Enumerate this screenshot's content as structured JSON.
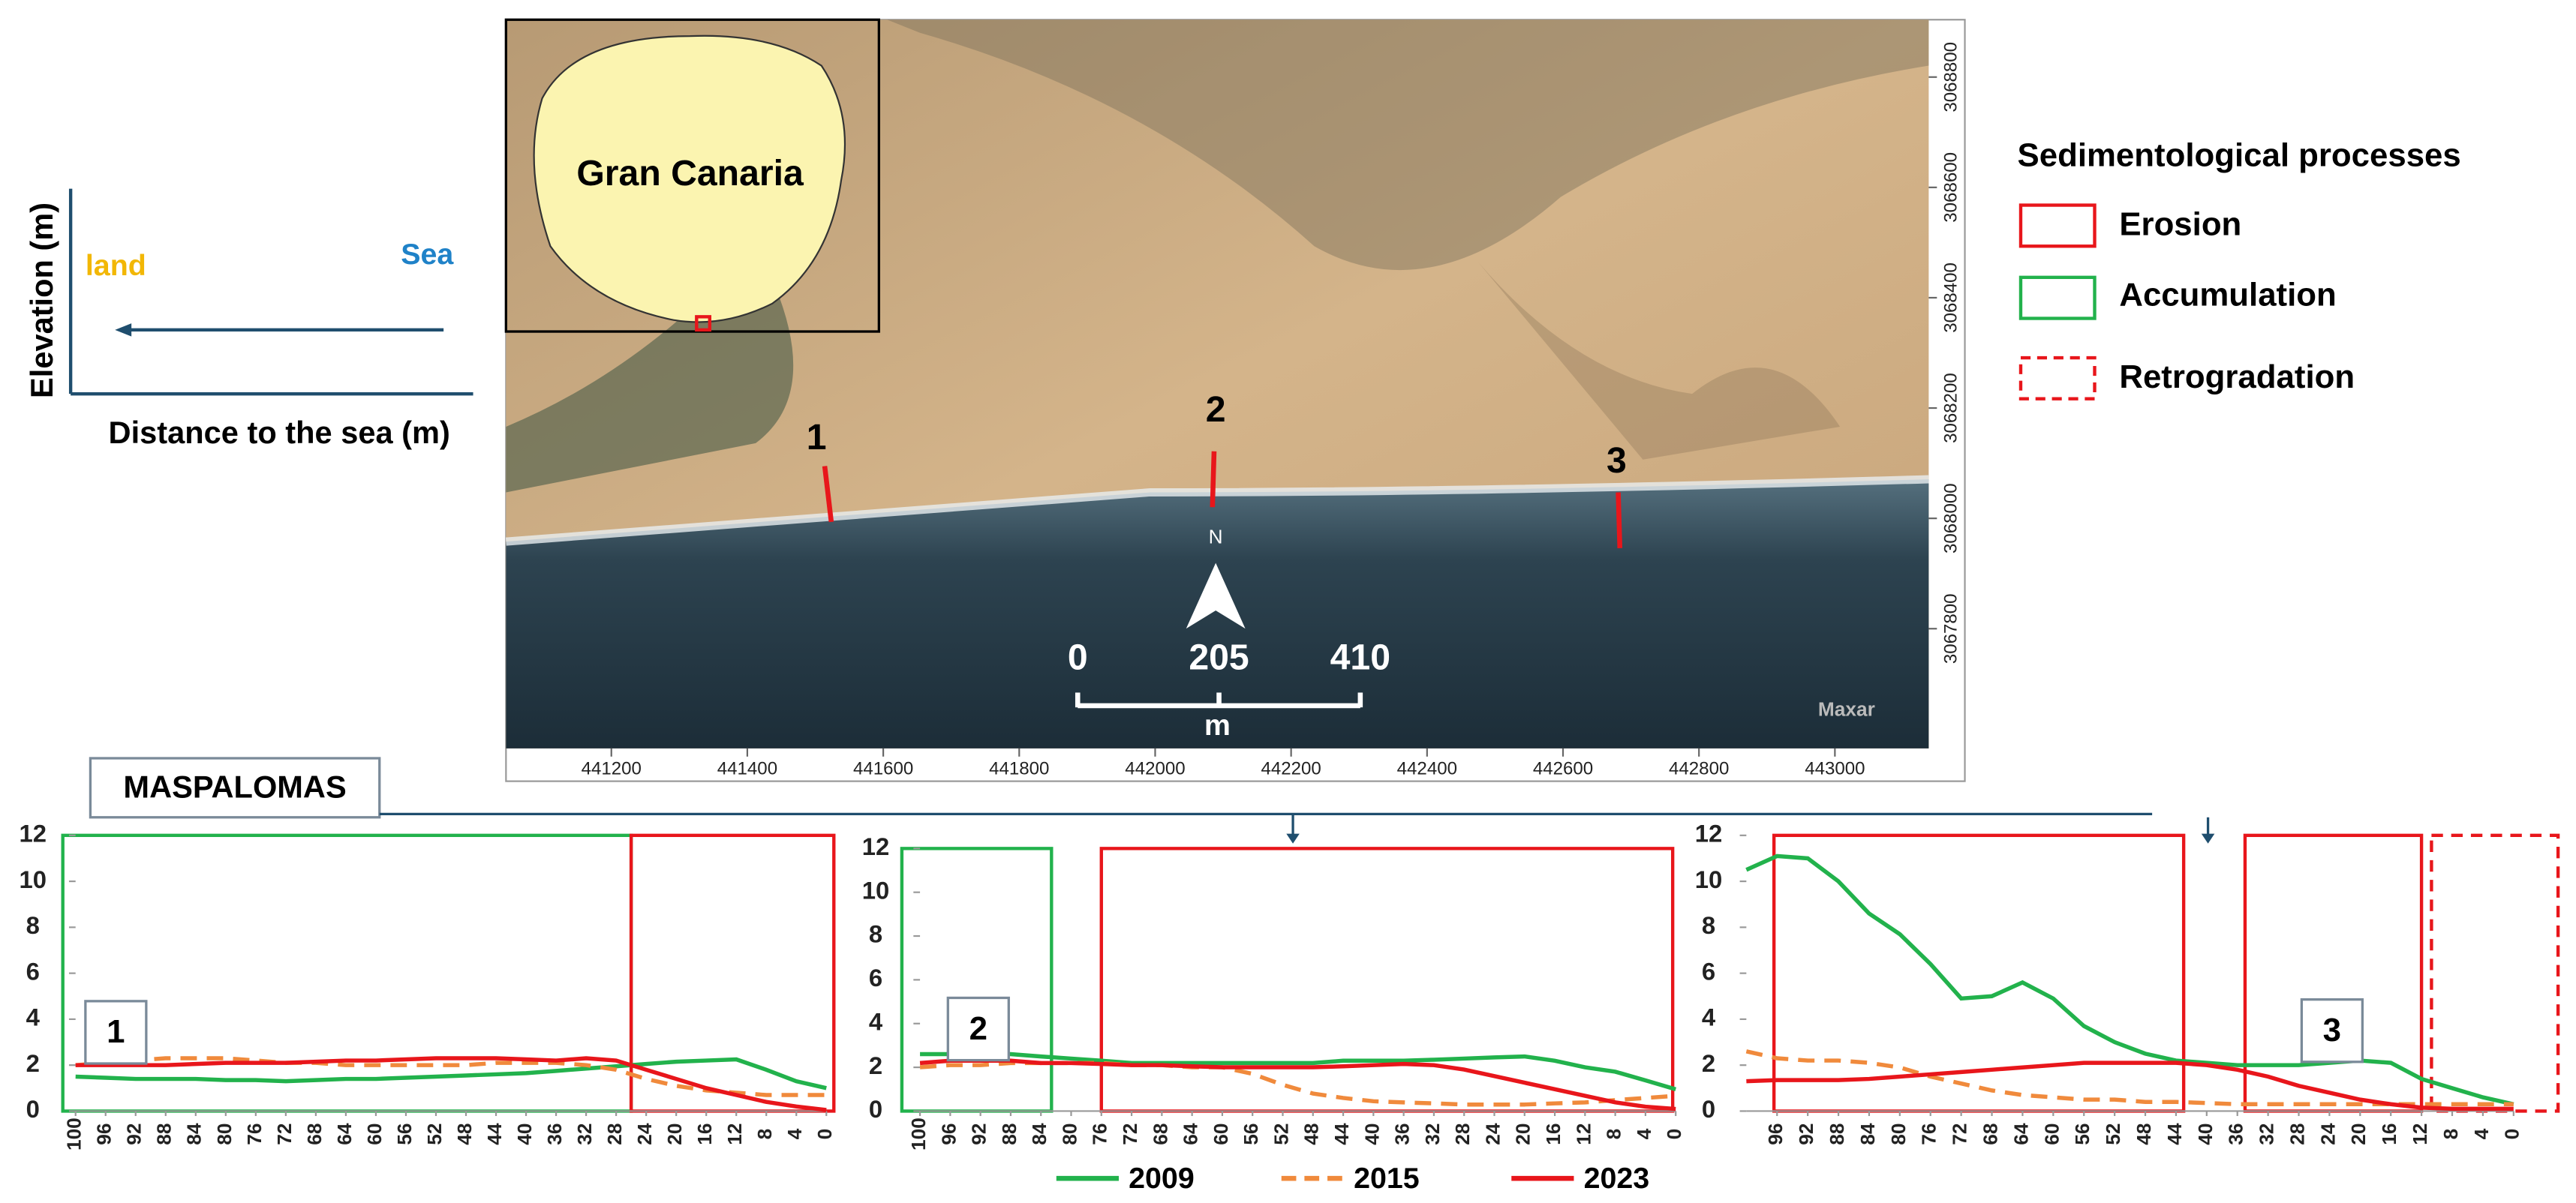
{
  "schematic": {
    "y_label": "Elevation (m)",
    "land": "land",
    "sea": "Sea",
    "x_label": "Distance to the sea (m)"
  },
  "map": {
    "island": "Gran Canaria",
    "profiles": [
      "1",
      "2",
      "3"
    ],
    "north": "N",
    "credit": "Maxar",
    "scale_bar": {
      "ticks": [
        0,
        205,
        410
      ],
      "unit": "m"
    },
    "xlim": [
      441045,
      443138
    ],
    "ylim": [
      3067583,
      3068904
    ],
    "xticks": [
      441200,
      441400,
      441600,
      441800,
      442000,
      442200,
      442400,
      442600,
      442800,
      443000
    ],
    "yticks": [
      3067800,
      3068000,
      3068200,
      3068400,
      3068600,
      3068800
    ]
  },
  "legend": {
    "title": "Sedimentological processes",
    "items": [
      "Erosion",
      "Accumulation",
      "Retrogradation"
    ]
  },
  "site": "MASPALOMAS",
  "chart_data": [
    {
      "type": "line",
      "label": "1",
      "x": [
        100,
        96,
        92,
        88,
        84,
        80,
        76,
        72,
        68,
        64,
        60,
        56,
        52,
        48,
        44,
        40,
        36,
        32,
        28,
        24,
        20,
        16,
        12,
        8,
        4,
        0
      ],
      "xlim": [
        100,
        0
      ],
      "xticks": [
        100,
        96,
        92,
        88,
        84,
        80,
        76,
        72,
        68,
        64,
        60,
        56,
        52,
        48,
        44,
        40,
        36,
        32,
        28,
        24,
        20,
        16,
        12,
        8,
        4,
        0
      ],
      "ylim": [
        0,
        12
      ],
      "yticks": [
        0,
        2,
        4,
        6,
        8,
        10,
        12
      ],
      "zones": [
        {
          "xlim": [
            101.7,
            26
          ],
          "color": "#22b24c",
          "dashed": false
        },
        {
          "xlim": [
            26,
            -1
          ],
          "color": "#e8161b",
          "dashed": false
        }
      ],
      "series": [
        {
          "name": "2009",
          "color": "#22b24c",
          "dashed": false,
          "values": [
            1.5,
            1.45,
            1.4,
            1.4,
            1.4,
            1.35,
            1.35,
            1.3,
            1.35,
            1.4,
            1.4,
            1.45,
            1.5,
            1.55,
            1.6,
            1.65,
            1.75,
            1.85,
            1.95,
            2.05,
            2.15,
            2.2,
            2.25,
            1.8,
            1.3,
            1.0
          ]
        },
        {
          "name": "2015",
          "color": "#f08a3c",
          "dashed": true,
          "values": [
            2.0,
            2.1,
            2.2,
            2.3,
            2.3,
            2.3,
            2.2,
            2.1,
            2.1,
            2.0,
            2.0,
            2.0,
            2.0,
            2.0,
            2.1,
            2.1,
            2.1,
            2.0,
            1.8,
            1.4,
            1.1,
            0.9,
            0.8,
            0.7,
            0.7,
            0.7
          ]
        },
        {
          "name": "2023",
          "color": "#e8161b",
          "dashed": false,
          "values": [
            2.0,
            2.0,
            2.0,
            2.0,
            2.05,
            2.1,
            2.1,
            2.1,
            2.15,
            2.2,
            2.2,
            2.25,
            2.3,
            2.3,
            2.3,
            2.25,
            2.2,
            2.3,
            2.2,
            1.8,
            1.4,
            1.0,
            0.7,
            0.4,
            0.2,
            0.05
          ]
        }
      ]
    },
    {
      "type": "line",
      "label": "2",
      "x": [
        100,
        96,
        92,
        88,
        84,
        80,
        76,
        72,
        68,
        64,
        60,
        56,
        52,
        48,
        44,
        40,
        36,
        32,
        28,
        24,
        20,
        16,
        12,
        8,
        4,
        0
      ],
      "xlim": [
        100,
        0
      ],
      "xticks": [
        100,
        96,
        92,
        88,
        84,
        80,
        76,
        72,
        68,
        64,
        60,
        56,
        52,
        48,
        44,
        40,
        36,
        32,
        28,
        24,
        20,
        16,
        12,
        8,
        4,
        0
      ],
      "ylim": [
        0,
        12
      ],
      "yticks": [
        0,
        2,
        4,
        6,
        8,
        10,
        12
      ],
      "zones": [
        {
          "xlim": [
            102.4,
            82.6
          ],
          "color": "#22b24c",
          "dashed": false
        },
        {
          "xlim": [
            76,
            0.4
          ],
          "color": "#e8161b",
          "dashed": false
        }
      ],
      "series": [
        {
          "name": "2009",
          "color": "#22b24c",
          "dashed": false,
          "values": [
            2.6,
            2.6,
            2.6,
            2.6,
            2.5,
            2.4,
            2.3,
            2.2,
            2.2,
            2.2,
            2.2,
            2.2,
            2.2,
            2.2,
            2.3,
            2.3,
            2.3,
            2.35,
            2.4,
            2.45,
            2.5,
            2.3,
            2.0,
            1.8,
            1.4,
            1.0
          ]
        },
        {
          "name": "2015",
          "color": "#f08a3c",
          "dashed": true,
          "values": [
            2.0,
            2.1,
            2.1,
            2.2,
            2.2,
            2.2,
            2.2,
            2.1,
            2.1,
            2.0,
            2.0,
            1.7,
            1.2,
            0.8,
            0.6,
            0.45,
            0.4,
            0.35,
            0.3,
            0.3,
            0.3,
            0.35,
            0.4,
            0.5,
            0.6,
            0.7
          ]
        },
        {
          "name": "2023",
          "color": "#e8161b",
          "dashed": false,
          "values": [
            2.2,
            2.3,
            2.3,
            2.3,
            2.2,
            2.2,
            2.15,
            2.1,
            2.1,
            2.05,
            2.0,
            2.0,
            2.0,
            2.0,
            2.05,
            2.1,
            2.15,
            2.1,
            1.9,
            1.6,
            1.3,
            1.0,
            0.7,
            0.4,
            0.2,
            0.1
          ]
        }
      ]
    },
    {
      "type": "line",
      "label": "3",
      "x": [
        100,
        96,
        92,
        88,
        84,
        80,
        76,
        72,
        68,
        64,
        60,
        56,
        52,
        48,
        44,
        40,
        36,
        32,
        28,
        24,
        20,
        16,
        12,
        8,
        4,
        0
      ],
      "xlim": [
        100,
        0
      ],
      "xticks": [
        96,
        92,
        88,
        84,
        80,
        76,
        72,
        68,
        64,
        60,
        56,
        52,
        48,
        44,
        40,
        36,
        32,
        28,
        24,
        20,
        16,
        12,
        8,
        4,
        0
      ],
      "ylim": [
        0,
        12
      ],
      "yticks": [
        0,
        2,
        4,
        6,
        8,
        10,
        12
      ],
      "zones": [
        {
          "xlim": [
            96.4,
            43
          ],
          "color": "#e8161b",
          "dashed": false
        },
        {
          "xlim": [
            35,
            12
          ],
          "color": "#e8161b",
          "dashed": false
        },
        {
          "xlim": [
            10.7,
            -5.8
          ],
          "color": "#e8161b",
          "dashed": true
        }
      ],
      "series": [
        {
          "name": "2009",
          "color": "#22b24c",
          "dashed": false,
          "values": [
            10.5,
            11.1,
            11.0,
            10.0,
            8.6,
            7.7,
            6.4,
            4.9,
            5.0,
            5.6,
            4.9,
            3.7,
            3.0,
            2.5,
            2.2,
            2.1,
            2.0,
            2.0,
            2.0,
            2.1,
            2.2,
            2.1,
            1.4,
            1.0,
            0.6,
            0.3
          ]
        },
        {
          "name": "2015",
          "color": "#f08a3c",
          "dashed": true,
          "values": [
            2.6,
            2.3,
            2.2,
            2.2,
            2.1,
            1.9,
            1.5,
            1.2,
            0.9,
            0.7,
            0.6,
            0.5,
            0.5,
            0.4,
            0.4,
            0.35,
            0.3,
            0.3,
            0.3,
            0.3,
            0.3,
            0.3,
            0.3,
            0.3,
            0.3,
            0.3
          ]
        },
        {
          "name": "2023",
          "color": "#e8161b",
          "dashed": false,
          "values": [
            1.3,
            1.35,
            1.35,
            1.35,
            1.4,
            1.5,
            1.6,
            1.7,
            1.8,
            1.9,
            2.0,
            2.1,
            2.1,
            2.1,
            2.1,
            2.0,
            1.8,
            1.5,
            1.1,
            0.8,
            0.5,
            0.3,
            0.15,
            0.1,
            0.1,
            0.1
          ]
        }
      ]
    }
  ]
}
